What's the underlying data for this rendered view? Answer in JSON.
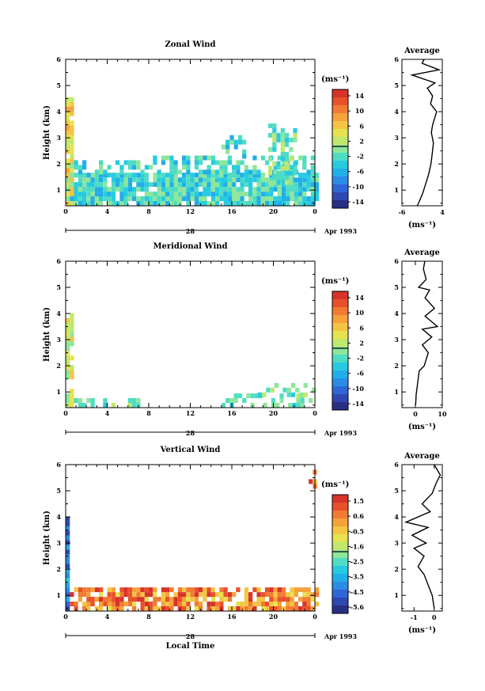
{
  "chart_data": [
    {
      "type": "heatmap",
      "title": "Zonal Wind",
      "ylabel": "Height (km)",
      "xlim": [
        0,
        24
      ],
      "ylim": [
        0.4,
        6
      ],
      "xticks": [
        "0",
        "4",
        "8",
        "12",
        "16",
        "20",
        "0"
      ],
      "yticks": [
        "1",
        "2",
        "3",
        "4",
        "5",
        "6"
      ],
      "date_label": "Apr 1993",
      "day_label": "28",
      "colorbar": {
        "unit": "(ms⁻¹)",
        "range": [
          -16,
          16
        ],
        "ticks": [
          "14",
          "10",
          "6",
          "2",
          "-2",
          "-6",
          "-10",
          "-14"
        ]
      },
      "profile": {
        "title": "Average",
        "xlim": [
          -6,
          4
        ],
        "xticks": [
          "-6",
          "4"
        ],
        "xlabel": "(ms⁻¹)",
        "points": [
          [
            -2.2,
            0.4
          ],
          [
            -1.6,
            0.6
          ],
          [
            -0.8,
            0.9
          ],
          [
            -0.2,
            1.2
          ],
          [
            0.6,
            1.6
          ],
          [
            1.2,
            2.0
          ],
          [
            1.5,
            2.4
          ],
          [
            1.8,
            2.8
          ],
          [
            1.3,
            3.2
          ],
          [
            1.6,
            3.5
          ],
          [
            2.6,
            4.0
          ],
          [
            1.1,
            4.3
          ],
          [
            1.6,
            4.6
          ],
          [
            0.3,
            4.9
          ],
          [
            2.2,
            5.1
          ],
          [
            -3.5,
            5.4
          ],
          [
            3.2,
            5.6
          ],
          [
            -1.0,
            5.85
          ],
          [
            -0.5,
            6.0
          ]
        ]
      },
      "field": {
        "base": -3,
        "spread": 4,
        "regions": [
          {
            "x0": 0,
            "x1": 24,
            "y0": 0.4,
            "y1": 1.6,
            "p": 0.93
          },
          {
            "x0": 8,
            "x1": 24,
            "y0": 1.6,
            "y1": 2.2,
            "p": 0.6
          },
          {
            "x0": 0,
            "x1": 8,
            "y0": 1.6,
            "y1": 2.1,
            "p": 0.45
          },
          {
            "x0": 0,
            "x1": 0.8,
            "y0": 0.4,
            "y1": 4.4,
            "p": 0.9,
            "v": 4
          },
          {
            "x0": 19.5,
            "x1": 22,
            "y0": 1.2,
            "y1": 3.4,
            "p": 0.7,
            "v": -1
          },
          {
            "x0": 15,
            "x1": 17,
            "y0": 2.2,
            "y1": 3.0,
            "p": 0.3
          }
        ]
      }
    },
    {
      "type": "heatmap",
      "title": "Meridional Wind",
      "ylabel": "Height (km)",
      "xlim": [
        0,
        24
      ],
      "ylim": [
        0.4,
        6
      ],
      "xticks": [
        "0",
        "4",
        "8",
        "12",
        "16",
        "20",
        "0"
      ],
      "yticks": [
        "1",
        "2",
        "3",
        "4",
        "5",
        "6"
      ],
      "date_label": "Apr 1993",
      "day_label": "28",
      "colorbar": {
        "unit": "(ms⁻¹)",
        "range": [
          -16,
          16
        ],
        "ticks": [
          "14",
          "10",
          "6",
          "2",
          "-2",
          "-6",
          "-10",
          "-14"
        ]
      },
      "profile": {
        "title": "Average",
        "xlim": [
          -5,
          10
        ],
        "xticks": [
          "0",
          "10"
        ],
        "xlabel": "(ms⁻¹)",
        "points": [
          [
            0.1,
            0.5
          ],
          [
            0.3,
            0.9
          ],
          [
            0.8,
            1.3
          ],
          [
            1.4,
            1.8
          ],
          [
            3.3,
            2.0
          ],
          [
            4.8,
            2.5
          ],
          [
            2.6,
            2.8
          ],
          [
            6.1,
            3.1
          ],
          [
            2.6,
            3.4
          ],
          [
            8.2,
            3.5
          ],
          [
            3.6,
            3.9
          ],
          [
            7.1,
            4.2
          ],
          [
            3.6,
            4.6
          ],
          [
            5.3,
            4.9
          ],
          [
            1.2,
            5.0
          ],
          [
            4.0,
            5.3
          ],
          [
            3.0,
            5.7
          ],
          [
            3.5,
            6.0
          ]
        ]
      },
      "field": {
        "base": -1,
        "spread": 3,
        "regions": [
          {
            "x0": 0,
            "x1": 7,
            "y0": 0.4,
            "y1": 0.7,
            "p": 0.55
          },
          {
            "x0": 0,
            "x1": 0.7,
            "y0": 0.4,
            "y1": 4.0,
            "p": 0.8,
            "v": 3
          },
          {
            "x0": 15,
            "x1": 24,
            "y0": 0.4,
            "y1": 0.8,
            "p": 0.5
          },
          {
            "x0": 18.5,
            "x1": 24,
            "y0": 0.8,
            "y1": 1.3,
            "p": 0.35
          }
        ]
      }
    },
    {
      "type": "heatmap",
      "title": "Vertical Wind",
      "ylabel": "Height (km)",
      "xlabel": "Local Time",
      "xlim": [
        0,
        24
      ],
      "ylim": [
        0.4,
        6
      ],
      "xticks": [
        "0",
        "4",
        "8",
        "12",
        "16",
        "20",
        "0"
      ],
      "yticks": [
        "1",
        "2",
        "3",
        "4",
        "5",
        "6"
      ],
      "date_label": "Apr 1993",
      "day_label": "28",
      "colorbar": {
        "unit": "(ms⁻¹)",
        "range": [
          -6.0,
          2.0
        ],
        "ticks": [
          "1.5",
          "0.6",
          "-0.5",
          "-1.6",
          "-2.5",
          "-3.5",
          "-4.5",
          "-5.6"
        ]
      },
      "profile": {
        "title": "Average",
        "xlim": [
          -1.6,
          0.4
        ],
        "xticks": [
          "-1",
          "0"
        ],
        "xlabel": "(ms⁻¹)",
        "points": [
          [
            0.0,
            0.5
          ],
          [
            -0.1,
            1.0
          ],
          [
            -0.3,
            1.4
          ],
          [
            -0.5,
            1.8
          ],
          [
            -0.8,
            2.1
          ],
          [
            -0.5,
            2.5
          ],
          [
            -1.0,
            2.8
          ],
          [
            -0.4,
            3.0
          ],
          [
            -1.1,
            3.3
          ],
          [
            -0.3,
            3.6
          ],
          [
            -1.4,
            3.8
          ],
          [
            -0.2,
            4.2
          ],
          [
            -0.6,
            4.5
          ],
          [
            -0.1,
            4.9
          ],
          [
            0.1,
            5.3
          ],
          [
            0.3,
            5.6
          ],
          [
            0.0,
            6.0
          ]
        ]
      },
      "field": {
        "base": 0.6,
        "spread": 1.4,
        "regions": [
          {
            "x0": 0,
            "x1": 24,
            "y0": 0.4,
            "y1": 1.2,
            "p": 0.78
          },
          {
            "x0": 0,
            "x1": 0.35,
            "y0": 0.4,
            "y1": 4.0,
            "p": 1.0,
            "v": -4.5
          },
          {
            "x0": 17,
            "x1": 18,
            "y0": 4.8,
            "y1": 5.3,
            "p": 0.2
          },
          {
            "x0": 23,
            "x1": 24,
            "y0": 4.9,
            "y1": 5.7,
            "p": 0.2
          }
        ]
      }
    }
  ]
}
